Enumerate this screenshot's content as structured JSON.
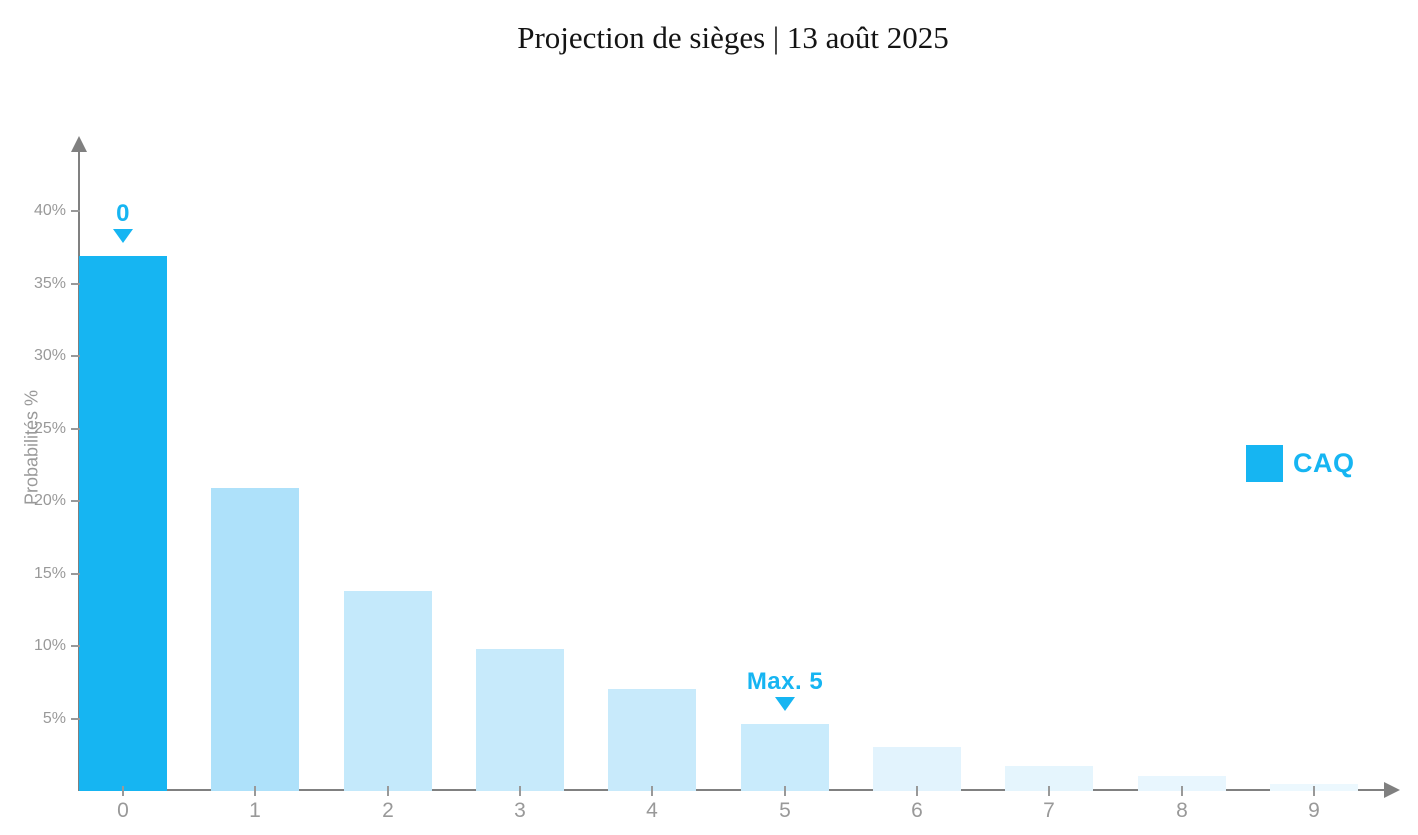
{
  "title": "Projection de sièges | 13 août 2025",
  "legend": {
    "items": [
      {
        "label": "CAQ",
        "color": "#16b5f2",
        "swatch": "square"
      }
    ]
  },
  "colors": {
    "accent_blue": "#16b5f2",
    "axis_gray": "#808080",
    "label_gray": "#999999",
    "background": "#ffffff",
    "title_text": "#141414"
  },
  "chart_data": {
    "type": "bar",
    "title": "Projection de sièges | 13 août 2025",
    "xlabel": "",
    "ylabel": "Probabilités %",
    "categories": [
      "0",
      "1",
      "2",
      "3",
      "4",
      "5",
      "6",
      "7",
      "8",
      "9"
    ],
    "series": [
      {
        "name": "CAQ",
        "values": [
          36.9,
          20.9,
          13.8,
          9.8,
          7.0,
          4.6,
          3.0,
          1.7,
          1.0,
          0.5
        ],
        "bar_colors": [
          "#16b5f2",
          "#aee1fa",
          "#c4e9fb",
          "#c7eafb",
          "#c8eafb",
          "#c9ebfc",
          "#e2f3fd",
          "#e5f5fd",
          "#e8f6fe",
          "#ecf8fe"
        ]
      }
    ],
    "ylim": [
      0,
      45
    ],
    "yticks": [
      {
        "value": 5,
        "label": "5%"
      },
      {
        "value": 10,
        "label": "10%"
      },
      {
        "value": 15,
        "label": "15%"
      },
      {
        "value": 20,
        "label": "20%"
      },
      {
        "value": 25,
        "label": "25%"
      },
      {
        "value": 30,
        "label": "30%"
      },
      {
        "value": 35,
        "label": "35%"
      },
      {
        "value": 40,
        "label": "40%"
      }
    ],
    "grid": false,
    "legend_position": "right",
    "annotations": [
      {
        "category_index": 0,
        "label": "0",
        "icon": "down-triangle-icon",
        "color": "#16b5f2"
      },
      {
        "category_index": 5,
        "label": "Max. 5",
        "icon": "down-triangle-icon",
        "color": "#16b5f2"
      }
    ]
  }
}
